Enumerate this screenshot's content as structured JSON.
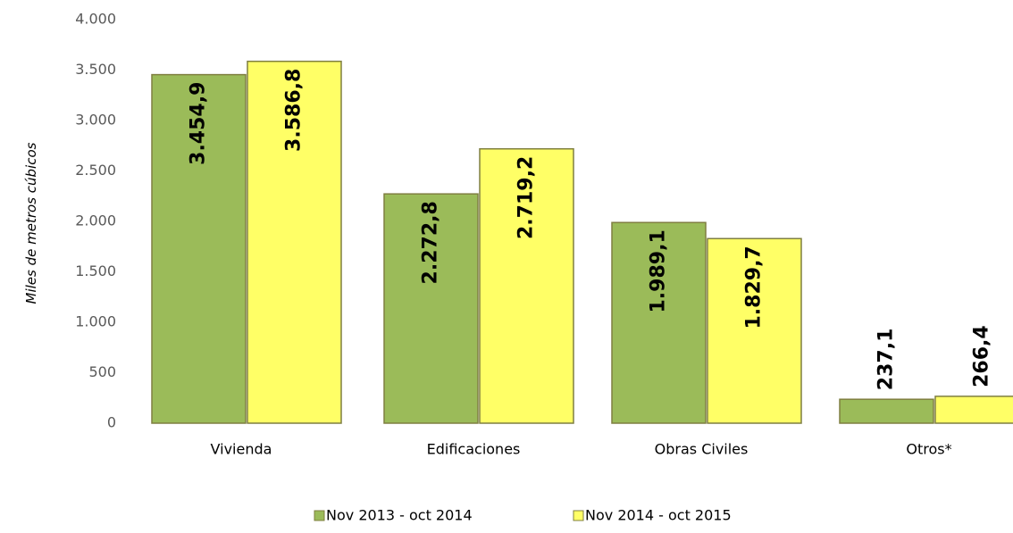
{
  "chart_data": {
    "type": "bar",
    "y_label": "Miles de metros cúbicos",
    "categories": [
      "Vivienda",
      "Edificaciones",
      "Obras Civiles",
      "Otros*"
    ],
    "series": [
      {
        "name": "Nov 2013 - oct 2014",
        "color": "#9bbb59",
        "values": [
          3454.9,
          2272.8,
          1989.1,
          237.1
        ],
        "value_labels": [
          "3.454,9",
          "2.272,8",
          "1.989,1",
          "237,1"
        ]
      },
      {
        "name": "Nov 2014 - oct 2015",
        "color": "#ffff66",
        "values": [
          3586.8,
          2719.2,
          1829.7,
          266.4
        ],
        "value_labels": [
          "3.586,8",
          "2.719,2",
          "1.829,7",
          "266,4"
        ]
      }
    ],
    "ylim": [
      0,
      4000
    ],
    "yticks": [
      0,
      500,
      {
        "value": 1000,
        "label": "1.000"
      },
      {
        "value": 1500,
        "label": "1.500"
      },
      {
        "value": 2000,
        "label": "2.000"
      },
      {
        "value": 2500,
        "label": "2.500"
      },
      {
        "value": 3000,
        "label": "3.000"
      },
      {
        "value": 3500,
        "label": "3.500"
      },
      {
        "value": 4000,
        "label": "4.000"
      }
    ],
    "grid": false
  }
}
